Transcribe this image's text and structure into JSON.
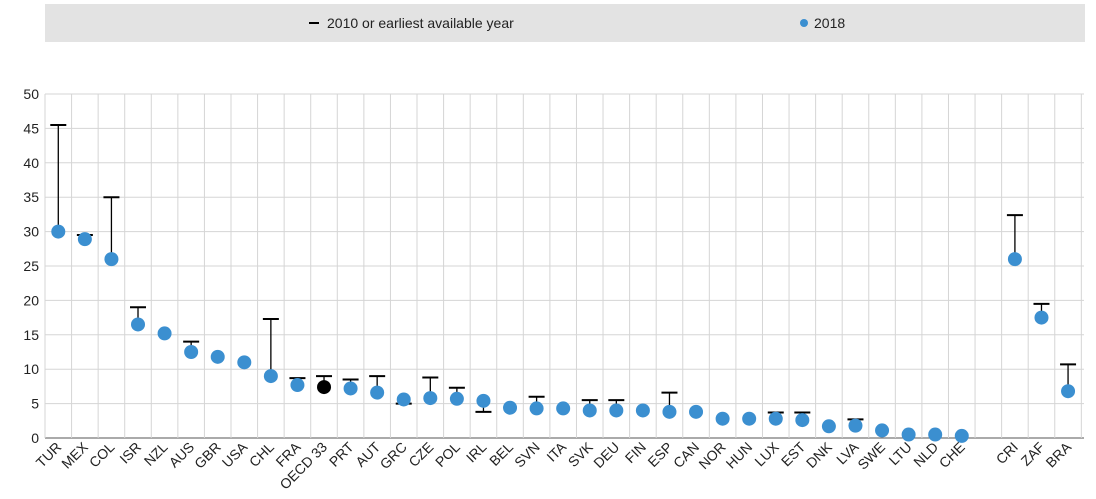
{
  "legend": {
    "range_label": "2010 or earliest available year",
    "point_label": "2018"
  },
  "colors": {
    "point": "#3b8fd0",
    "oecd_point": "#000000",
    "whisker": "#000000",
    "grid": "#d5d5d5",
    "legend_bg": "#e3e3e3"
  },
  "chart_data": {
    "type": "scatter",
    "ylim": [
      0,
      50
    ],
    "yticks": [
      0,
      5,
      10,
      15,
      20,
      25,
      30,
      35,
      40,
      45,
      50
    ],
    "grid": true,
    "legend_position": "top",
    "categories": [
      "TUR",
      "MEX",
      "COL",
      "ISR",
      "NZL",
      "AUS",
      "GBR",
      "USA",
      "CHL",
      "FRA",
      "OECD 33",
      "PRT",
      "AUT",
      "GRC",
      "CZE",
      "POL",
      "IRL",
      "BEL",
      "SVN",
      "ITA",
      "SVK",
      "DEU",
      "FIN",
      "ESP",
      "CAN",
      "NOR",
      "HUN",
      "LUX",
      "EST",
      "DNK",
      "LVA",
      "SWE",
      "LTU",
      "NLD",
      "CHE",
      "",
      "CRI",
      "ZAF",
      "BRA"
    ],
    "series": [
      {
        "name": "2010 or earliest available year",
        "values": [
          45.5,
          29.5,
          35.0,
          19.0,
          null,
          14.0,
          null,
          null,
          17.3,
          8.7,
          9.0,
          8.5,
          9.0,
          5.0,
          8.8,
          7.3,
          3.8,
          null,
          6.0,
          null,
          5.5,
          5.5,
          null,
          6.6,
          null,
          null,
          null,
          3.7,
          3.7,
          null,
          2.7,
          null,
          null,
          null,
          null,
          null,
          32.4,
          19.5,
          10.7
        ]
      },
      {
        "name": "2018",
        "values": [
          30.0,
          28.9,
          26.0,
          16.5,
          15.2,
          12.5,
          11.8,
          11.0,
          9.0,
          7.7,
          7.4,
          7.2,
          6.6,
          5.6,
          5.8,
          5.7,
          5.4,
          4.4,
          4.3,
          4.3,
          4.0,
          4.0,
          4.0,
          3.8,
          3.8,
          2.8,
          2.8,
          2.8,
          2.6,
          1.7,
          1.8,
          1.1,
          0.5,
          0.5,
          0.3,
          null,
          26.0,
          17.5,
          6.8
        ]
      }
    ]
  }
}
